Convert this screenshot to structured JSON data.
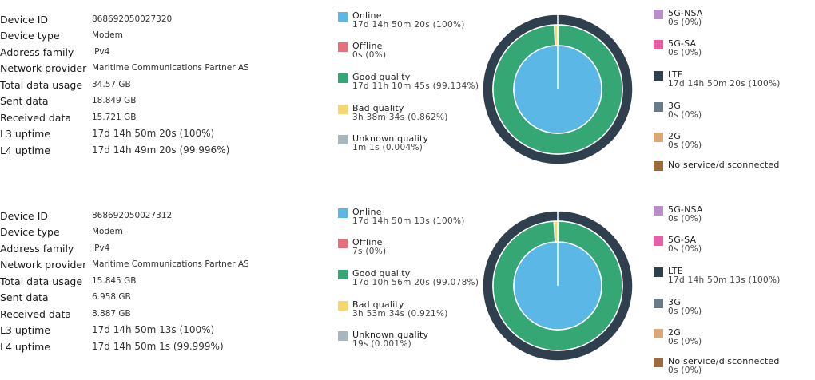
{
  "labels": {
    "device_id": "Device ID",
    "device_type": "Device type",
    "address_family": "Address family",
    "network_provider": "Network provider",
    "total_data_usage": "Total data usage",
    "sent_data": "Sent data",
    "received_data": "Received data",
    "l3_uptime": "L3 uptime",
    "l4_uptime": "L4 uptime"
  },
  "legend_names": {
    "online": "Online",
    "offline": "Offline",
    "good_quality": "Good quality",
    "bad_quality": "Bad quality",
    "unknown_quality": "Unknown quality",
    "nsa5g": "5G-NSA",
    "sa5g": "5G-SA",
    "lte": "LTE",
    "g3": "3G",
    "g2": "2G",
    "no_service": "No service/disconnected"
  },
  "colors": {
    "online": "#5bb8e6",
    "offline": "#e8707d",
    "good_quality": "#34a774",
    "bad_quality": "#f5d76e",
    "unknown_quality": "#a8b6bf",
    "nsa5g": "#b98fc7",
    "sa5g": "#e85ea8",
    "lte": "#2f3f4d",
    "g3": "#6b7b87",
    "g2": "#d9a77a",
    "no_service": "#9c6b3f"
  },
  "devices": [
    {
      "device_id": "868692050027320",
      "device_type": "Modem",
      "address_family": "IPv4",
      "network_provider": "Maritime Communications Partner AS",
      "total_data_usage": "34.57 GB",
      "sent_data": "18.849 GB",
      "received_data": "15.721 GB",
      "l3_uptime": "17d 14h 50m 20s (100%)",
      "l4_uptime": "17d 14h 49m 20s (99.996%)",
      "legend": {
        "online": "17d 14h 50m 20s (100%)",
        "offline": "0s (0%)",
        "good_quality": "17d 11h 10m 45s (99.134%)",
        "bad_quality": "3h 38m 34s (0.862%)",
        "unknown_quality": "1m 1s (0.004%)",
        "nsa5g": "0s (0%)",
        "sa5g": "0s (0%)",
        "lte": "17d 14h 50m 20s (100%)",
        "g3": "0s (0%)",
        "g2": "0s (0%)",
        "no_service": ""
      },
      "chart_data": {
        "type": "pie",
        "inner": {
          "online": 100,
          "offline": 0
        },
        "middle": {
          "good_quality": 99.134,
          "bad_quality": 0.862,
          "unknown_quality": 0.004
        },
        "outer": {
          "nsa5g": 0,
          "sa5g": 0,
          "lte": 100,
          "g3": 0,
          "g2": 0,
          "no_service": 0
        }
      }
    },
    {
      "device_id": "868692050027312",
      "device_type": "Modem",
      "address_family": "IPv4",
      "network_provider": "Maritime Communications Partner AS",
      "total_data_usage": "15.845 GB",
      "sent_data": "6.958 GB",
      "received_data": "8.887 GB",
      "l3_uptime": "17d 14h 50m 13s (100%)",
      "l4_uptime": "17d 14h 50m 1s (99.999%)",
      "legend": {
        "online": "17d 14h 50m 13s (100%)",
        "offline": "7s (0%)",
        "good_quality": "17d 10h 56m 20s (99.078%)",
        "bad_quality": "3h 53m 34s (0.921%)",
        "unknown_quality": "19s (0.001%)",
        "nsa5g": "0s (0%)",
        "sa5g": "0s (0%)",
        "lte": "17d 14h 50m 13s (100%)",
        "g3": "0s (0%)",
        "g2": "0s (0%)",
        "no_service": "0s (0%)"
      },
      "chart_data": {
        "type": "pie",
        "inner": {
          "online": 100,
          "offline": 0
        },
        "middle": {
          "good_quality": 99.078,
          "bad_quality": 0.921,
          "unknown_quality": 0.001
        },
        "outer": {
          "nsa5g": 0,
          "sa5g": 0,
          "lte": 100,
          "g3": 0,
          "g2": 0,
          "no_service": 0
        }
      }
    }
  ]
}
